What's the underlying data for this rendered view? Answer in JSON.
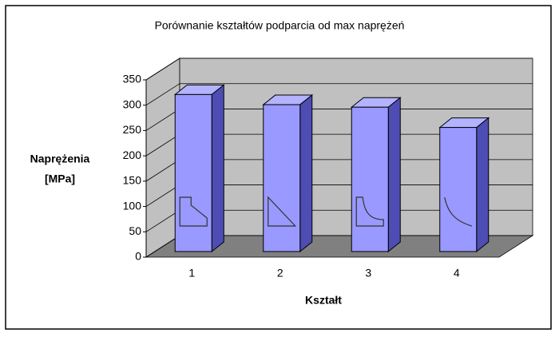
{
  "chart_data": {
    "type": "bar3d",
    "title": "Porównanie kształtów podparcia od max naprężeń",
    "y_label": [
      "Naprężenia",
      "[MPa]"
    ],
    "x_label": "Kształt",
    "categories": [
      "1",
      "2",
      "3",
      "4"
    ],
    "values": [
      310,
      290,
      285,
      245
    ],
    "color": "#9999ff",
    "ylim": [
      0,
      350
    ],
    "yticks": [
      0,
      50,
      100,
      150,
      200,
      250,
      300,
      350
    ],
    "grid": true
  }
}
